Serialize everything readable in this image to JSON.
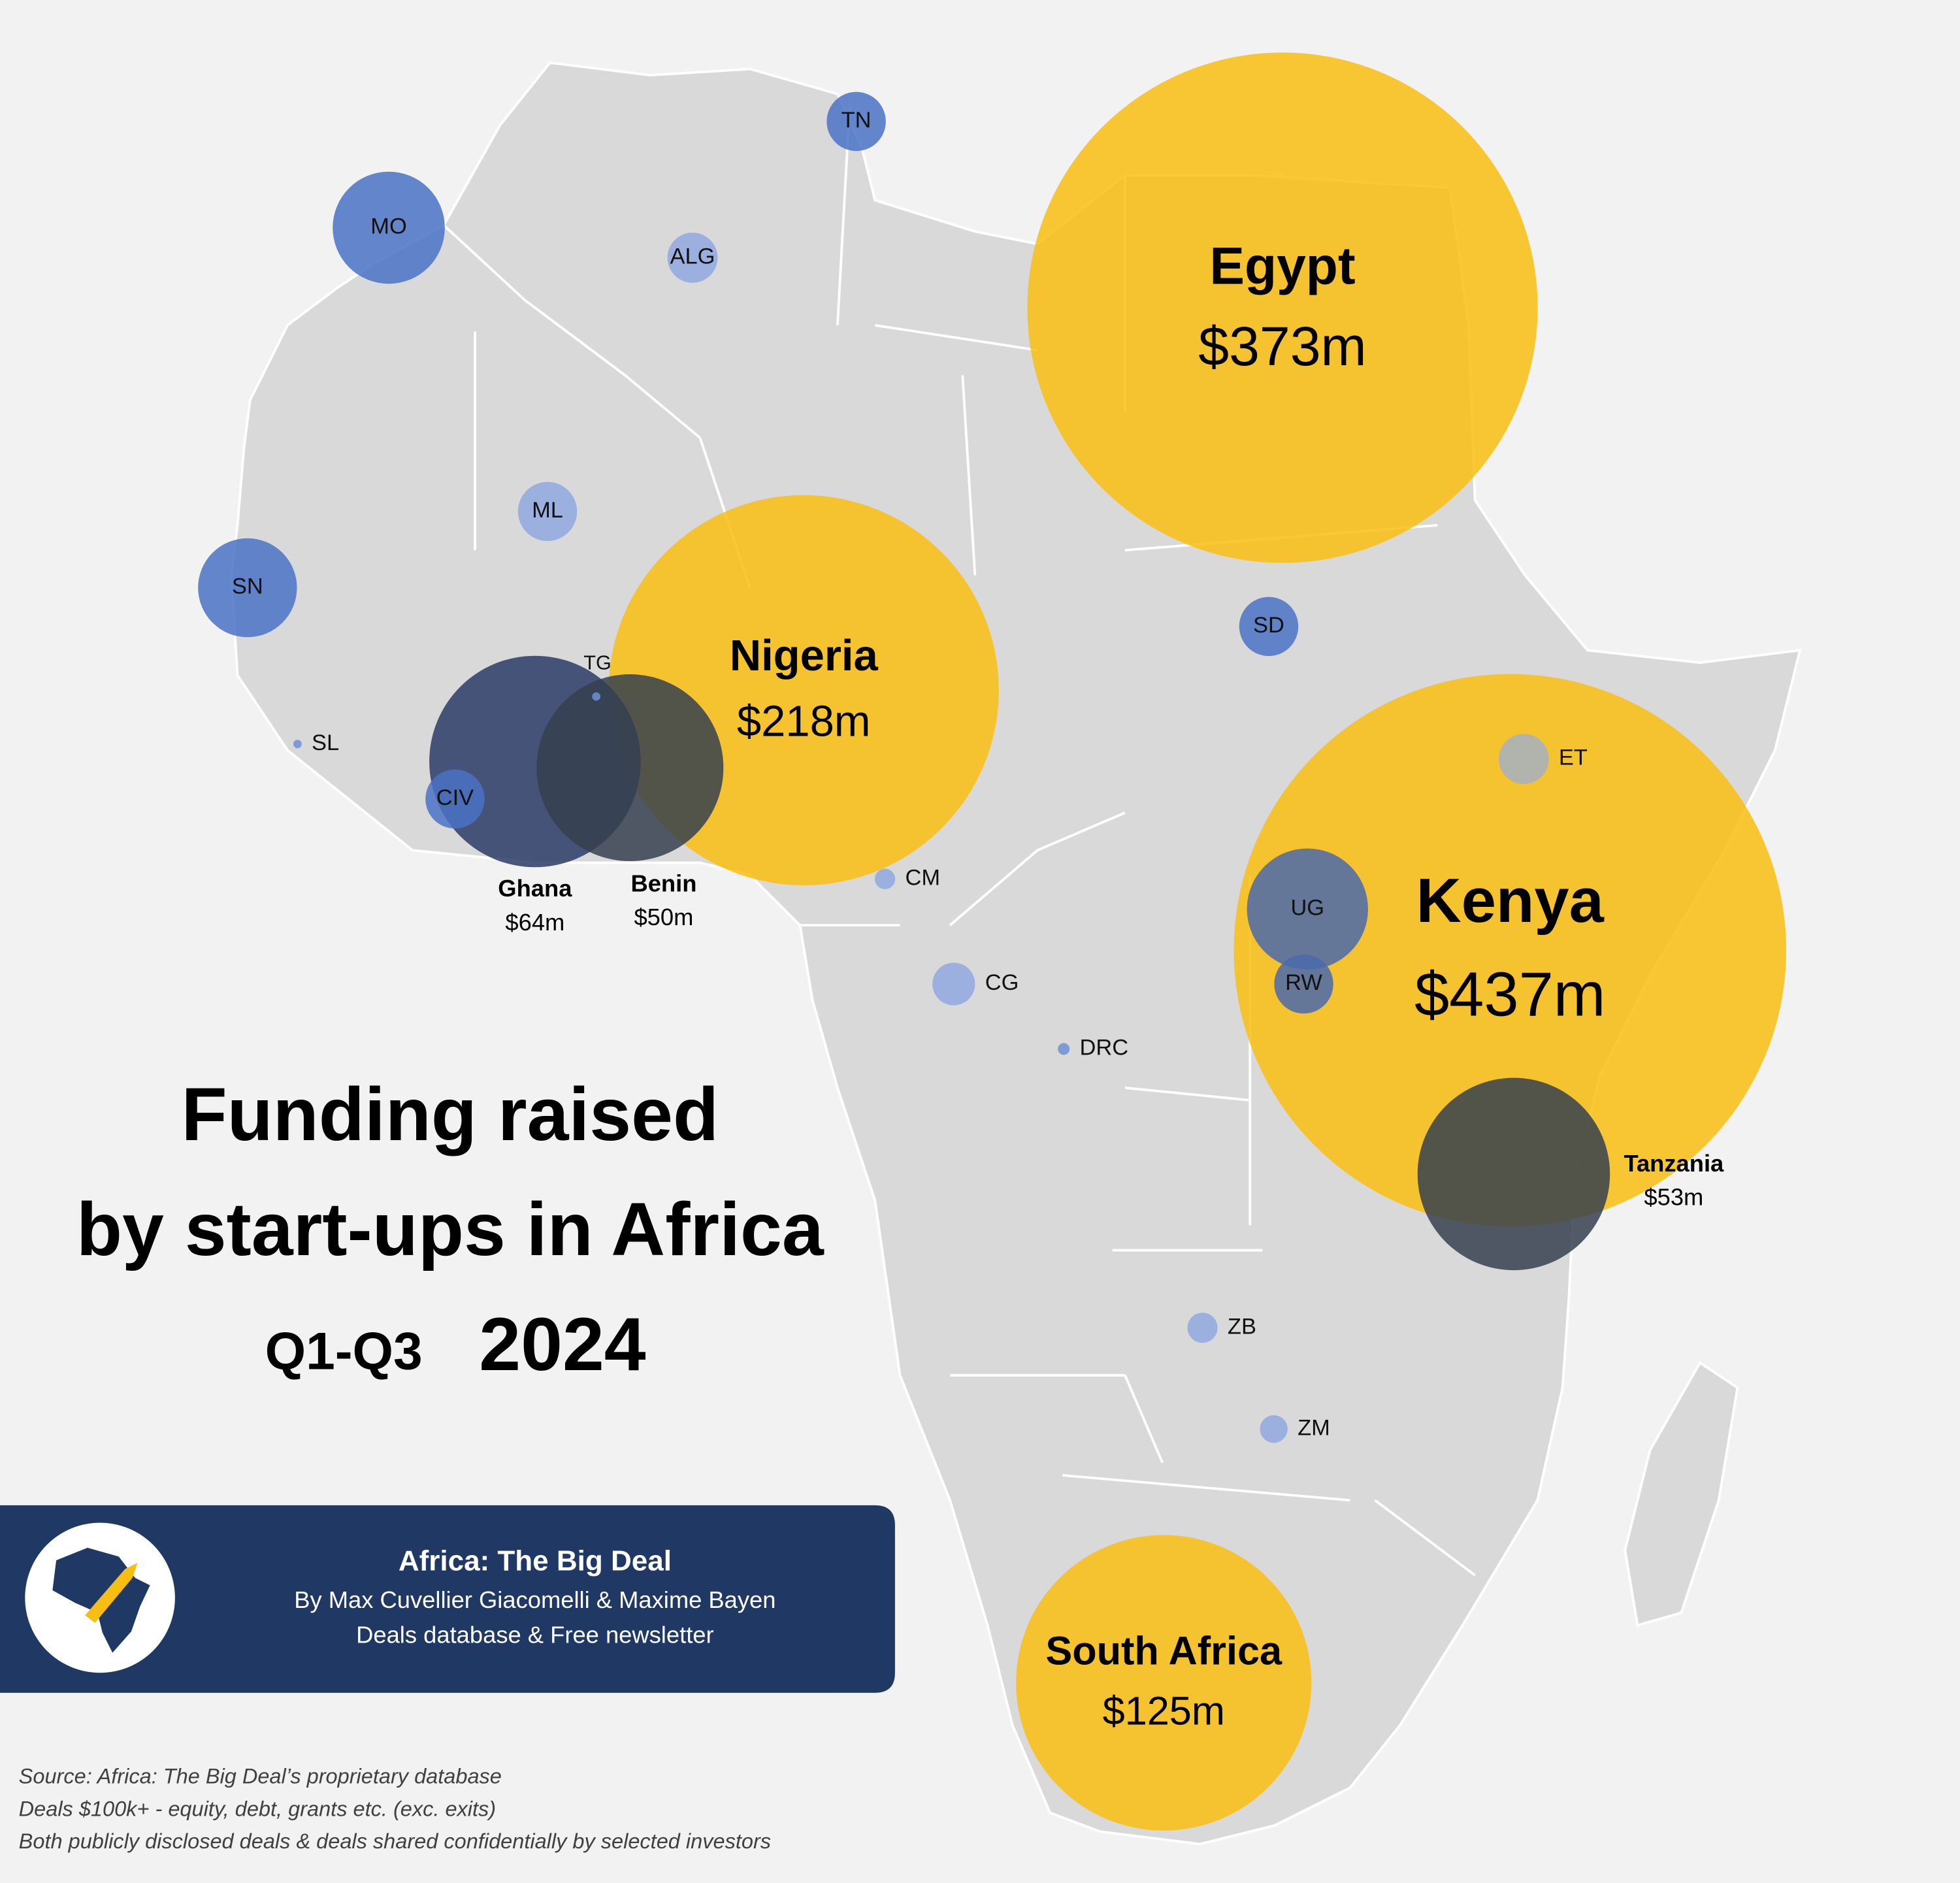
{
  "chart_data": {
    "type": "bubble",
    "title": [
      "Funding raised",
      "by start-ups in Africa"
    ],
    "period": "Q1-Q3",
    "year": "2024",
    "categories": [
      "Egypt",
      "Kenya",
      "Nigeria",
      "South Africa",
      "Ghana",
      "Benin",
      "Tanzania",
      "MO",
      "SN",
      "UG",
      "TN",
      "ALG",
      "ML",
      "SD",
      "RW",
      "CIV",
      "ET",
      "CG",
      "CM",
      "ZB",
      "ZM",
      "DRC",
      "SL",
      "TG"
    ],
    "values": [
      373,
      437,
      218,
      125,
      64,
      50,
      53,
      18,
      14,
      21,
      5,
      3.6,
      5,
      5,
      5,
      5,
      3.6,
      2.6,
      0.6,
      1.3,
      1.1,
      0.2,
      0.1,
      0.1
    ],
    "value_labels": [
      "$373m",
      "$437m",
      "$218m",
      "$125m",
      "$64m",
      "$50m",
      "$53m",
      null,
      null,
      null,
      null,
      null,
      null,
      null,
      null,
      null,
      null,
      null,
      null,
      null,
      null,
      null,
      null,
      null
    ],
    "colors": [
      "#f9be12",
      "#f9be12",
      "#f9be12",
      "#f9be12",
      "#2c3b66",
      "#353f4d",
      "#353f4d",
      "#4a72c4",
      "#4a72c4",
      "#4a6aaa",
      "#4a72c4",
      "#8fa8de",
      "#8fa8de",
      "#4a72c4",
      "#4a6aaa",
      "#4a72c4",
      "#a3b1c2",
      "#8fa8de",
      "#8fa8de",
      "#8fa8de",
      "#8fa8de",
      "#6f8fd4",
      "#6f8fd4",
      "#6f8fd4"
    ]
  },
  "banner": {
    "title": "Africa: The Big Deal",
    "authors": "By Max Cuvellier Giacomelli & Maxime Bayen",
    "tagline": "Deals database & Free newsletter"
  },
  "source": [
    "Source: Africa: The Big Deal’s proprietary database",
    "Deals $100k+ - equity, debt, grants etc. (exc. exits)",
    "Both publicly disclosed deals & deals shared confidentially by selected investors"
  ]
}
